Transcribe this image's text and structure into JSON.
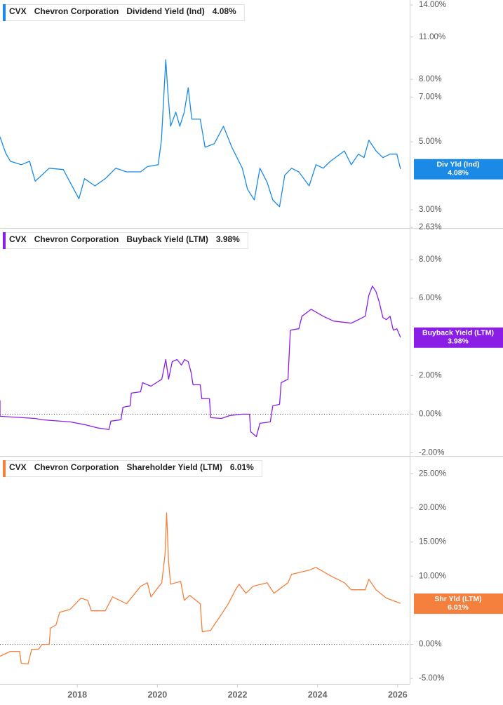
{
  "chart_data": [
    {
      "type": "line",
      "ticker": "CVX",
      "company": "Chevron Corporation",
      "log_scale": true,
      "zero_line": false,
      "xlim": [
        2016.07,
        2026.3
      ],
      "ylim": [
        2.63,
        14
      ],
      "yticks": [
        {
          "value": 14,
          "label": "14.00%"
        },
        {
          "value": 11,
          "label": "11.00%"
        },
        {
          "value": 8,
          "label": "8.00%"
        },
        {
          "value": 7,
          "label": "7.00%"
        },
        {
          "value": 5,
          "label": "5.00%"
        },
        {
          "value": 3,
          "label": "3.00%"
        },
        {
          "value": 2.63,
          "label": "2.63%"
        }
      ],
      "x": [
        2016.07,
        2016.21,
        2016.33,
        2016.6,
        2016.81,
        2016.95,
        2017.3,
        2017.65,
        2017.82,
        2018.04,
        2018.18,
        2018.44,
        2018.7,
        2018.96,
        2019.23,
        2019.58,
        2019.75,
        2020.02,
        2020.1,
        2020.21,
        2020.26,
        2020.33,
        2020.46,
        2020.56,
        2020.67,
        2020.77,
        2020.86,
        2021.07,
        2021.19,
        2021.42,
        2021.65,
        2021.86,
        2022.12,
        2022.25,
        2022.42,
        2022.56,
        2022.74,
        2022.88,
        2023.05,
        2023.18,
        2023.35,
        2023.53,
        2023.79,
        2023.96,
        2024.14,
        2024.32,
        2024.67,
        2024.84,
        2025.02,
        2025.16,
        2025.28,
        2025.46,
        2025.63,
        2025.81,
        2025.98,
        2026.07
      ],
      "series": [
        {
          "name": "Dividend Yield (Ind)",
          "short_name": "Div Yld (Ind)",
          "color": "#1a8ae6",
          "value_label": "4.08%",
          "values": [
            5.19,
            4.6,
            4.32,
            4.21,
            4.32,
            3.72,
            4.1,
            4.06,
            3.69,
            3.26,
            3.79,
            3.59,
            3.79,
            4.1,
            3.99,
            3.99,
            4.15,
            4.21,
            5.06,
            9.28,
            7.32,
            5.62,
            6.25,
            5.62,
            6.25,
            7.51,
            5.93,
            5.93,
            4.8,
            4.93,
            5.62,
            4.8,
            4.1,
            3.5,
            3.23,
            4.1,
            3.69,
            3.23,
            3.07,
            3.89,
            4.1,
            3.99,
            3.59,
            4.21,
            4.1,
            4.32,
            4.67,
            4.21,
            4.56,
            4.44,
            5.06,
            4.67,
            4.44,
            4.56,
            4.56,
            4.08
          ]
        }
      ]
    },
    {
      "type": "line",
      "ticker": "CVX",
      "company": "Chevron Corporation",
      "log_scale": false,
      "zero_line": true,
      "xlim": [
        2016.07,
        2026.3
      ],
      "ylim": [
        -2.2,
        9.6
      ],
      "yticks": [
        {
          "value": 8,
          "label": "8.00%"
        },
        {
          "value": 6,
          "label": "6.00%"
        },
        {
          "value": 2,
          "label": "2.00%"
        },
        {
          "value": 0,
          "label": "0.00%"
        },
        {
          "value": -2,
          "label": "-2.00%"
        }
      ],
      "x": [
        2016.07,
        2016.07,
        2016.95,
        2017.12,
        2017.82,
        2018.18,
        2018.53,
        2018.79,
        2018.84,
        2019.09,
        2019.14,
        2019.32,
        2019.35,
        2019.58,
        2019.63,
        2019.84,
        2020.11,
        2020.21,
        2020.28,
        2020.37,
        2020.49,
        2020.6,
        2020.68,
        2020.77,
        2020.84,
        2020.89,
        2021.07,
        2021.11,
        2021.3,
        2021.33,
        2021.6,
        2021.81,
        2022.12,
        2022.3,
        2022.33,
        2022.47,
        2022.56,
        2022.82,
        2022.88,
        2023.05,
        2023.09,
        2023.26,
        2023.32,
        2023.53,
        2023.61,
        2023.84,
        2024.14,
        2024.4,
        2024.84,
        2025.02,
        2025.19,
        2025.28,
        2025.37,
        2025.46,
        2025.54,
        2025.63,
        2025.72,
        2025.81,
        2025.89,
        2025.98,
        2026.07
      ],
      "series": [
        {
          "name": "Buyback Yield (LTM)",
          "short_name": "Buyback Yield (LTM)",
          "color": "#8a1ee6",
          "value_label": "3.98%",
          "values": [
            0.72,
            -0.11,
            -0.22,
            -0.29,
            -0.4,
            -0.54,
            -0.72,
            -0.8,
            -0.36,
            -0.29,
            0.36,
            0.43,
            1.09,
            1.16,
            1.63,
            1.45,
            1.81,
            2.83,
            1.81,
            2.72,
            2.83,
            2.54,
            2.83,
            2.72,
            2.17,
            1.52,
            1.52,
            0.8,
            0.8,
            -0.18,
            -0.22,
            -0.07,
            0,
            0,
            -0.91,
            -1.16,
            -0.47,
            -0.4,
            0.43,
            0.51,
            1.63,
            1.81,
            4.35,
            4.42,
            5.07,
            5.43,
            5.07,
            4.82,
            4.71,
            4.89,
            5.07,
            6.16,
            6.63,
            6.34,
            5.8,
            5,
            4.89,
            5.07,
            4.35,
            4.42,
            3.98
          ]
        }
      ]
    },
    {
      "type": "line",
      "ticker": "CVX",
      "company": "Chevron Corporation",
      "log_scale": false,
      "zero_line": true,
      "xlim": [
        2016.07,
        2026.3
      ],
      "ylim": [
        -5.8,
        27.4
      ],
      "xticks": [
        2018,
        2020,
        2022,
        2024,
        2026
      ],
      "yticks": [
        {
          "value": 25,
          "label": "25.00%"
        },
        {
          "value": 20,
          "label": "20.00%"
        },
        {
          "value": 15,
          "label": "15.00%"
        },
        {
          "value": 10,
          "label": "10.00%"
        },
        {
          "value": 0,
          "label": "0.00%"
        },
        {
          "value": -5,
          "label": "-5.00%"
        }
      ],
      "x": [
        2016.07,
        2016.33,
        2016.56,
        2016.6,
        2016.77,
        2016.86,
        2017.03,
        2017.12,
        2017.3,
        2017.33,
        2017.47,
        2017.56,
        2017.82,
        2018.09,
        2018.26,
        2018.35,
        2018.7,
        2018.88,
        2019.23,
        2019.58,
        2019.75,
        2019.84,
        2020.11,
        2020.19,
        2020.23,
        2020.28,
        2020.33,
        2020.58,
        2020.67,
        2020.81,
        2021.07,
        2021.12,
        2021.33,
        2021.42,
        2021.6,
        2021.77,
        2021.95,
        2022.04,
        2022.21,
        2022.39,
        2022.74,
        2022.91,
        2023.26,
        2023.35,
        2023.79,
        2023.96,
        2024.32,
        2024.67,
        2024.84,
        2025.19,
        2025.28,
        2025.46,
        2025.72,
        2026.07
      ],
      "series": [
        {
          "name": "Shareholder Yield (LTM)",
          "short_name": "Shr Yld (LTM)",
          "color": "#f5803e",
          "value_label": "6.01%",
          "values": [
            -1.74,
            -1.03,
            -1.03,
            -2.77,
            -2.87,
            -0.72,
            -0.72,
            0,
            0,
            2.36,
            2.87,
            4.72,
            5.13,
            6.77,
            6.46,
            4.92,
            4.92,
            6.97,
            5.95,
            8.51,
            9.03,
            6.97,
            9.03,
            13.13,
            19.28,
            12.1,
            8.82,
            9.23,
            6.46,
            7.18,
            5.95,
            1.85,
            2.05,
            2.87,
            4.41,
            5.95,
            8,
            8.82,
            7.49,
            8.51,
            9.03,
            7.49,
            9.03,
            10.26,
            10.87,
            11.28,
            10.05,
            9.03,
            8,
            8,
            9.54,
            8,
            6.77,
            6.01
          ]
        }
      ]
    }
  ]
}
